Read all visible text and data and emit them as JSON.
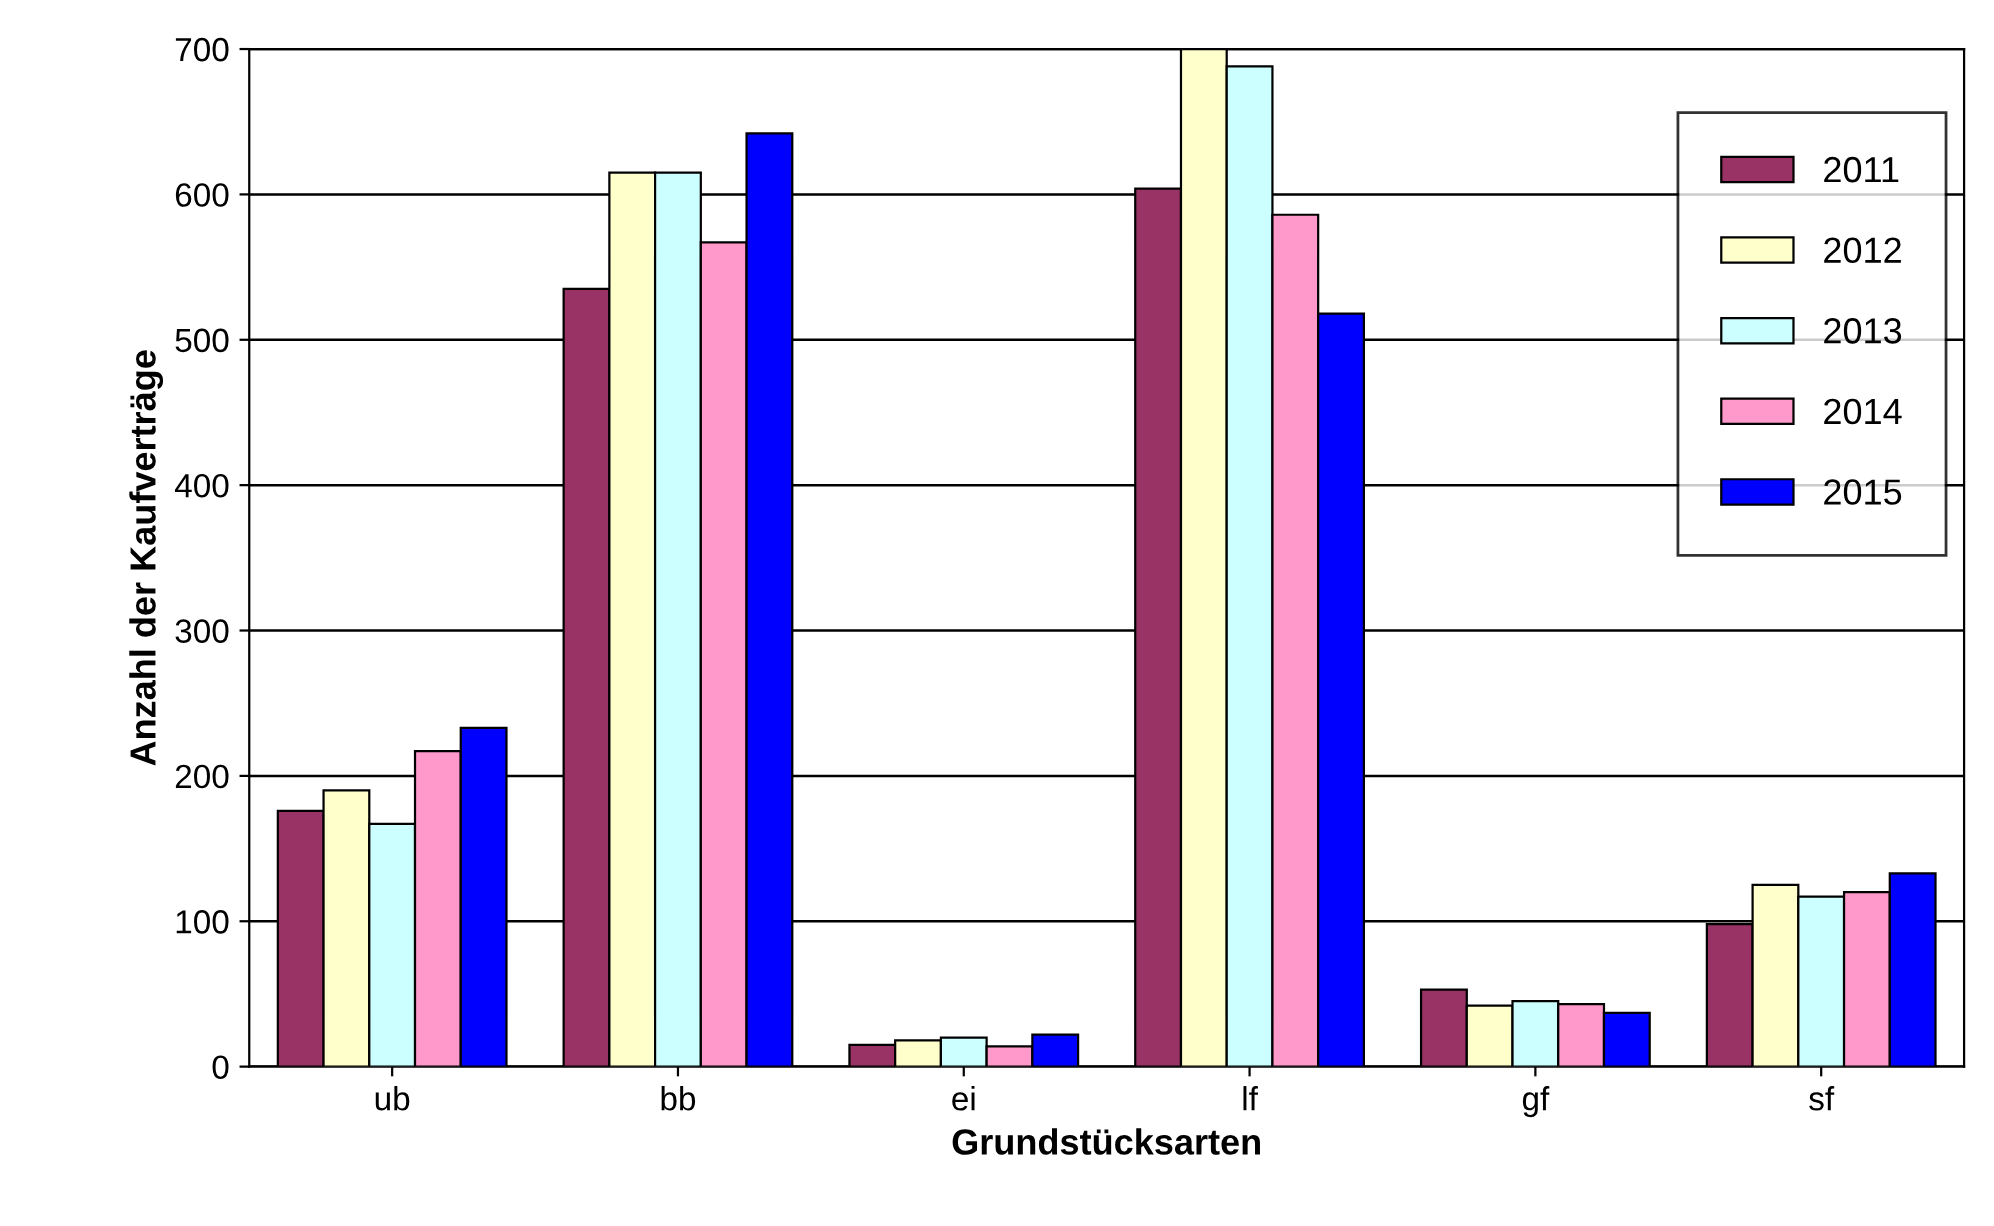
{
  "chart_data": {
    "type": "bar",
    "xlabel": "Grundstücksarten",
    "ylabel": "Anzahl der Kaufverträge",
    "categories": [
      "ub",
      "bb",
      "ei",
      "lf",
      "gf",
      "sf"
    ],
    "series": [
      {
        "name": "2011",
        "color": "#993366",
        "values": [
          176,
          535,
          15,
          604,
          53,
          98
        ]
      },
      {
        "name": "2012",
        "color": "#ffffcc",
        "values": [
          190,
          615,
          18,
          700,
          42,
          125
        ]
      },
      {
        "name": "2013",
        "color": "#ccffff",
        "values": [
          167,
          615,
          20,
          688,
          45,
          117
        ]
      },
      {
        "name": "2014",
        "color": "#ff99cc",
        "values": [
          217,
          567,
          14,
          586,
          43,
          120
        ]
      },
      {
        "name": "2015",
        "color": "#0000ff",
        "values": [
          233,
          642,
          22,
          518,
          37,
          133
        ]
      }
    ],
    "ylim": [
      0,
      700
    ],
    "yticks": [
      0,
      100,
      200,
      300,
      400,
      500,
      600,
      700
    ],
    "grid": "y",
    "legend": "right"
  }
}
